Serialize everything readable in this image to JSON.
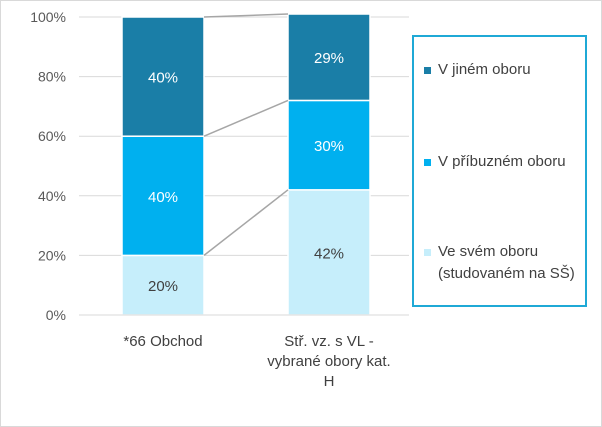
{
  "chart_data": {
    "type": "bar",
    "stacked": true,
    "percent": true,
    "categories": [
      "*66 Obchod",
      "Stř. vz. s VL - vybrané obory kat. H"
    ],
    "series": [
      {
        "name": "Ve svém oboru (studovaném na SŠ)",
        "values": [
          20,
          42
        ],
        "color": "#c6eefb",
        "labels": [
          "20%",
          "42%"
        ]
      },
      {
        "name": "V příbuzném oboru",
        "values": [
          40,
          30
        ],
        "color": "#00b0ef",
        "labels": [
          "40%",
          "30%"
        ]
      },
      {
        "name": "V jiném oboru",
        "values": [
          40,
          29
        ],
        "color": "#1a7ea7",
        "labels": [
          "40%",
          "29%"
        ]
      }
    ],
    "ylim": [
      0,
      100
    ],
    "yticks": [
      "0%",
      "20%",
      "40%",
      "60%",
      "80%",
      "100%"
    ],
    "grid": true,
    "series_lines": true,
    "legend_position": "right",
    "legend_border_color": "#1fa9d6"
  }
}
